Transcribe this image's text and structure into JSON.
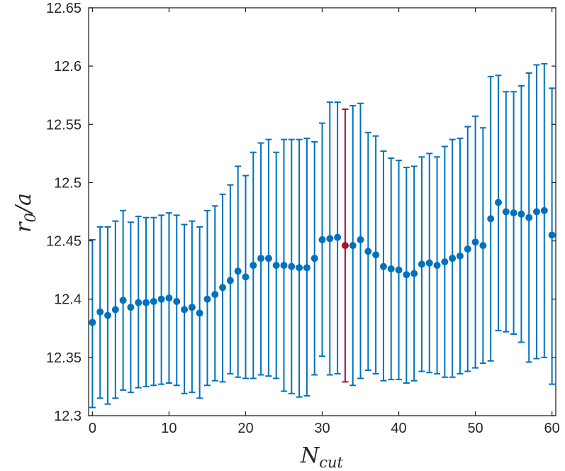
{
  "chart_data": {
    "type": "scatter",
    "title": "",
    "xlabel": "N",
    "xlabel_sub": "cut",
    "ylabel": "r",
    "ylabel_sub": "0",
    "ylabel_suffix": "/a",
    "xlim": [
      -0.5,
      60.5
    ],
    "ylim": [
      12.3,
      12.65
    ],
    "xticks": [
      0,
      10,
      20,
      30,
      40,
      50,
      60
    ],
    "xtick_labels": [
      "0",
      "10",
      "20",
      "30",
      "40",
      "50",
      "60"
    ],
    "yticks": [
      12.3,
      12.35,
      12.4,
      12.45,
      12.5,
      12.55,
      12.6,
      12.65
    ],
    "ytick_labels": [
      "12.3",
      "12.35",
      "12.4",
      "12.45",
      "12.5",
      "12.55",
      "12.6",
      "12.65"
    ],
    "grid": false,
    "colors": {
      "series": "#0072bd",
      "highlight": "#a2142f",
      "axis": "#262626"
    },
    "highlight_index": 33,
    "series": [
      {
        "x": [
          0,
          1,
          2,
          3,
          4,
          5,
          6,
          7,
          8,
          9,
          10,
          11,
          12,
          13,
          14,
          15,
          16,
          17,
          18,
          19,
          20,
          21,
          22,
          23,
          24,
          25,
          26,
          27,
          28,
          29,
          30,
          31,
          32,
          33,
          34,
          35,
          36,
          37,
          38,
          39,
          40,
          41,
          42,
          43,
          44,
          45,
          46,
          47,
          48,
          49,
          50,
          51,
          52,
          53,
          54,
          55,
          56,
          57,
          58,
          59,
          60
        ],
        "y": [
          12.38,
          12.389,
          12.386,
          12.391,
          12.399,
          12.393,
          12.397,
          12.397,
          12.398,
          12.4,
          12.401,
          12.398,
          12.391,
          12.393,
          12.388,
          12.4,
          12.404,
          12.41,
          12.416,
          12.424,
          12.419,
          12.429,
          12.435,
          12.435,
          12.429,
          12.429,
          12.428,
          12.427,
          12.427,
          12.435,
          12.451,
          12.452,
          12.453,
          12.446,
          12.446,
          12.451,
          12.441,
          12.438,
          12.428,
          12.426,
          12.425,
          12.421,
          12.422,
          12.43,
          12.431,
          12.429,
          12.432,
          12.435,
          12.437,
          12.443,
          12.449,
          12.446,
          12.469,
          12.483,
          12.475,
          12.474,
          12.473,
          12.47,
          12.475,
          12.476,
          12.455
        ],
        "err_low": [
          12.307,
          12.315,
          12.31,
          12.315,
          12.322,
          12.32,
          12.324,
          12.325,
          12.326,
          12.327,
          12.328,
          12.326,
          12.319,
          12.32,
          12.315,
          12.326,
          12.33,
          12.329,
          12.336,
          12.333,
          12.332,
          12.332,
          12.335,
          12.334,
          12.332,
          12.321,
          12.319,
          12.316,
          12.317,
          12.335,
          12.351,
          12.335,
          12.336,
          12.329,
          12.326,
          12.332,
          12.339,
          12.336,
          12.33,
          12.331,
          12.331,
          12.328,
          12.33,
          12.338,
          12.337,
          12.336,
          12.333,
          12.333,
          12.336,
          12.338,
          12.341,
          12.345,
          12.347,
          12.373,
          12.372,
          12.37,
          12.363,
          12.346,
          12.349,
          12.35,
          12.327
        ],
        "err_high": [
          12.451,
          12.462,
          12.462,
          12.467,
          12.476,
          12.466,
          12.471,
          12.47,
          12.47,
          12.472,
          12.474,
          12.472,
          12.464,
          12.467,
          12.462,
          12.476,
          12.48,
          12.49,
          12.498,
          12.514,
          12.506,
          12.526,
          12.534,
          12.537,
          12.526,
          12.537,
          12.537,
          12.537,
          12.538,
          12.535,
          12.551,
          12.569,
          12.569,
          12.563,
          12.566,
          12.568,
          12.543,
          12.54,
          12.527,
          12.521,
          12.519,
          12.513,
          12.514,
          12.522,
          12.525,
          12.522,
          12.531,
          12.537,
          12.538,
          12.548,
          12.557,
          12.547,
          12.591,
          12.592,
          12.578,
          12.578,
          12.583,
          12.594,
          12.601,
          12.602,
          12.581
        ]
      }
    ]
  }
}
